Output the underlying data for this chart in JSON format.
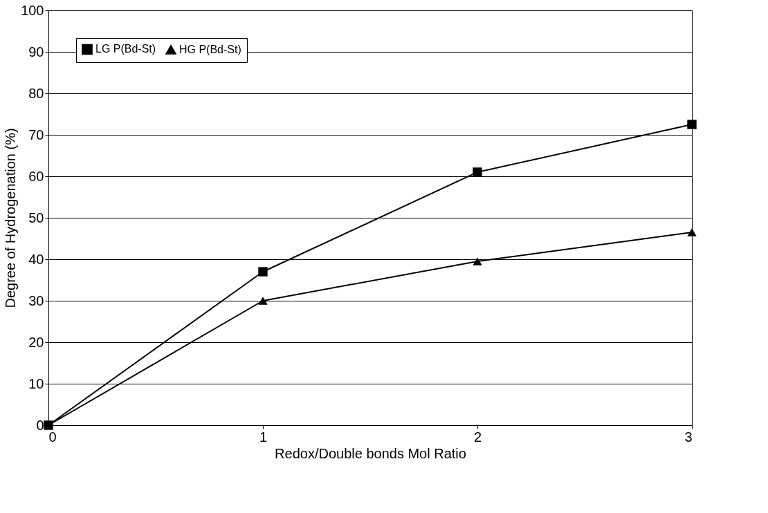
{
  "chart_data": {
    "type": "line",
    "xlabel": "Redox/Double bonds Mol Ratio",
    "ylabel": "Degree of Hydrogenation (%)",
    "x": [
      0,
      1,
      2,
      3
    ],
    "series": [
      {
        "name": "LG P(Bd-St)",
        "color": "#000000",
        "marker": "square",
        "values": [
          0,
          37,
          61,
          72.5
        ]
      },
      {
        "name": "HG P(Bd-St)",
        "color": "#000000",
        "marker": "triangle",
        "values": [
          0,
          30,
          39.5,
          46.5
        ]
      }
    ],
    "xlim": [
      0,
      3
    ],
    "xticks": [
      0,
      1,
      2,
      3
    ],
    "ylim": [
      0,
      100
    ],
    "yticks": [
      0,
      10,
      20,
      30,
      40,
      50,
      60,
      70,
      80,
      90,
      100
    ],
    "grid": "y",
    "legend": "top left",
    "line_style": "solid"
  }
}
